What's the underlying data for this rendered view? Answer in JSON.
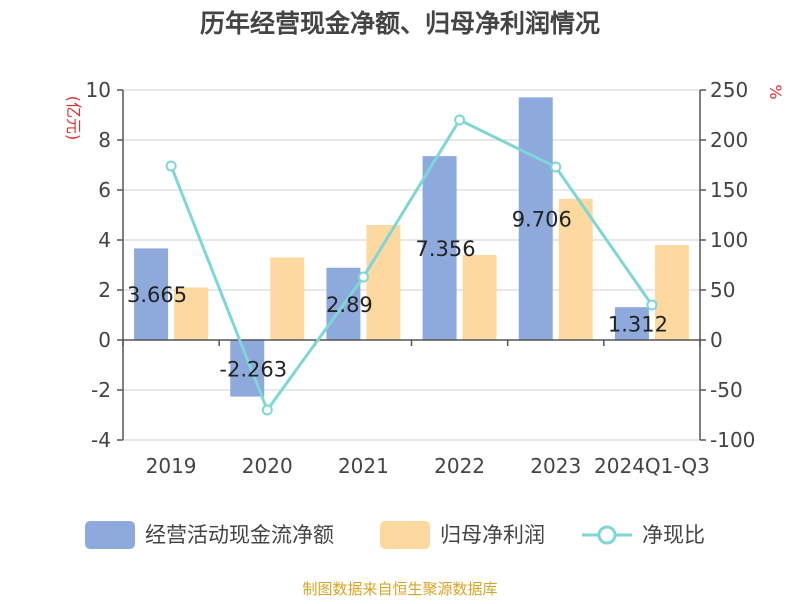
{
  "chart_data": {
    "type": "bar",
    "title": "历年经营现金净额、归母净利润情况",
    "left_axis_unit": "(亿元)",
    "right_axis_unit": "%",
    "categories": [
      "2019",
      "2020",
      "2021",
      "2022",
      "2023",
      "2024Q1-Q3"
    ],
    "left_ticks": [
      "10",
      "8",
      "6",
      "4",
      "2",
      "0",
      "-2",
      "-4"
    ],
    "right_ticks": [
      "250",
      "200",
      "150",
      "100",
      "50",
      "0",
      "-50",
      "-100"
    ],
    "ylim_left": [
      -4,
      10
    ],
    "ylim_right": [
      -100,
      250
    ],
    "series": [
      {
        "name": "经营活动现金流净额",
        "type": "bar",
        "axis": "left",
        "color": "#8eaadc",
        "values": [
          3.665,
          -2.263,
          2.89,
          7.356,
          9.706,
          1.312
        ]
      },
      {
        "name": "归母净利润",
        "type": "bar",
        "axis": "left",
        "color": "#fdd9a0",
        "values": [
          2.1,
          3.3,
          4.6,
          3.4,
          5.65,
          3.8
        ]
      },
      {
        "name": "净现比",
        "type": "line",
        "axis": "right",
        "color": "#7ed6d6",
        "values": [
          174,
          -70,
          63,
          220,
          173,
          35
        ]
      }
    ],
    "data_labels": [
      "3.665",
      "-2.263",
      "2.89",
      "7.356",
      "9.706",
      "1.312"
    ],
    "grid": true,
    "legend_position": "bottom"
  },
  "footer": {
    "source": "制图数据来自恒生聚源数据库"
  }
}
